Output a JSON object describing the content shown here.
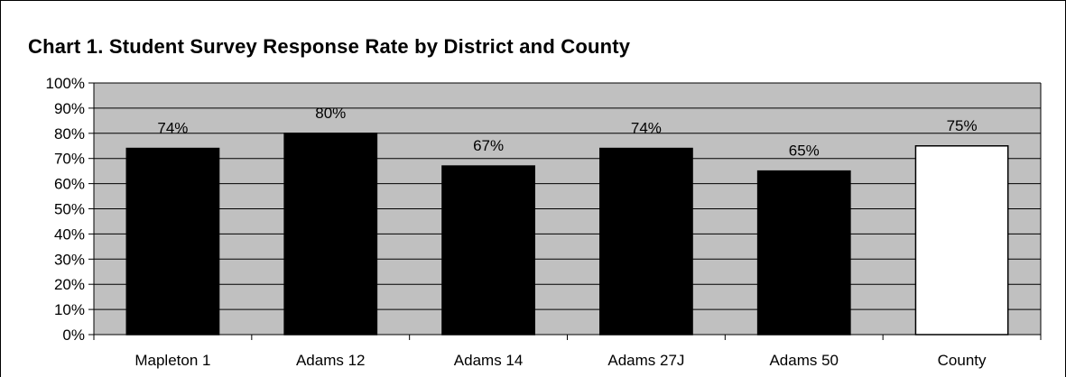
{
  "chart_data": {
    "type": "bar",
    "title": "Chart 1.  Student Survey Response Rate by District and County",
    "xlabel": "",
    "ylabel": "",
    "categories": [
      "Mapleton 1",
      "Adams 12",
      "Adams 14",
      "Adams 27J",
      "Adams 50",
      "County"
    ],
    "values": [
      74,
      80,
      67,
      74,
      65,
      75
    ],
    "data_labels": [
      "74%",
      "80%",
      "67%",
      "74%",
      "65%",
      "75%"
    ],
    "ylim": [
      0,
      100
    ],
    "yticks": [
      0,
      10,
      20,
      30,
      40,
      50,
      60,
      70,
      80,
      90,
      100
    ],
    "ytick_labels": [
      "0%",
      "10%",
      "20%",
      "30%",
      "40%",
      "50%",
      "60%",
      "70%",
      "80%",
      "90%",
      "100%"
    ],
    "grid": true,
    "legend": "none",
    "colors": {
      "plot_background": "#c0c0c0",
      "district_bar": "#000000",
      "county_bar": "#ffffff",
      "bar_outline": "#000000",
      "gridline": "#000000"
    }
  }
}
